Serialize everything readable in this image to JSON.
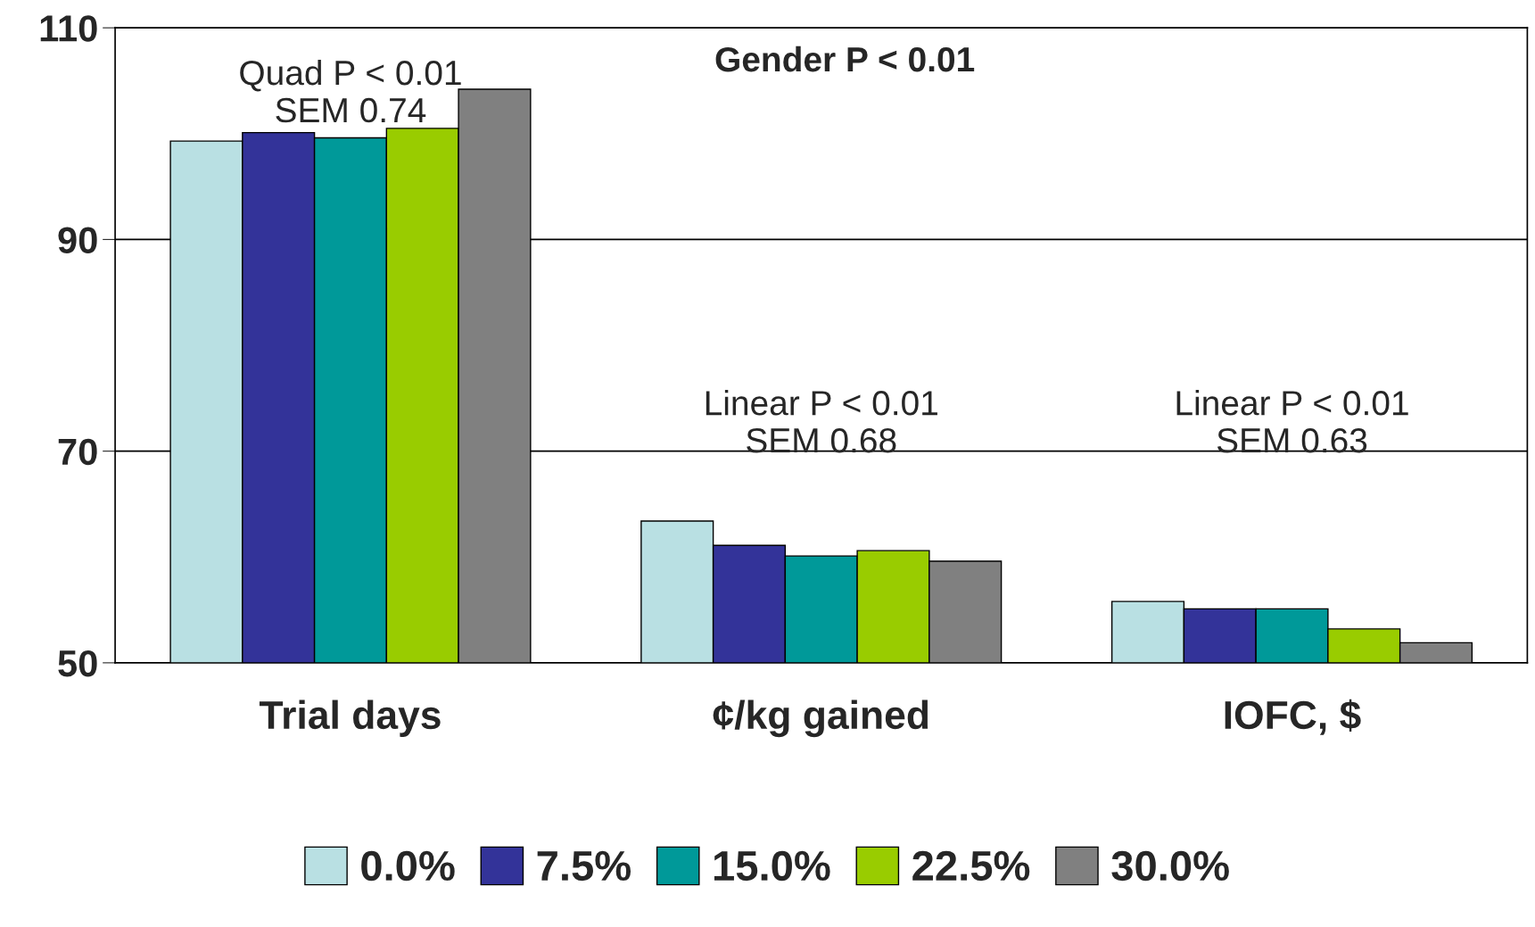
{
  "chart_data": {
    "type": "bar",
    "categories": [
      "Trial days",
      "¢/kg gained",
      "IOFC, $"
    ],
    "series": [
      {
        "name": "0.0%",
        "color": "#b9e0e3",
        "values": [
          99.3,
          63.4,
          55.8
        ]
      },
      {
        "name": "7.5%",
        "color": "#333399",
        "values": [
          100.1,
          61.1,
          55.1
        ]
      },
      {
        "name": "15.0%",
        "color": "#009999",
        "values": [
          99.6,
          60.1,
          55.1
        ]
      },
      {
        "name": "22.5%",
        "color": "#99cc00",
        "values": [
          100.5,
          60.6,
          53.2
        ]
      },
      {
        "name": "30.0%",
        "color": "#808080",
        "values": [
          104.2,
          59.6,
          51.9
        ]
      }
    ],
    "ylim": [
      50,
      110
    ],
    "yticks": [
      50,
      70,
      90,
      110
    ],
    "grid": "y",
    "legend": "bottom",
    "annotations": [
      "Quad P < 0.01\nSEM 0.74",
      "Linear P < 0.01\nSEM 0.68",
      "Linear P < 0.01\nSEM 0.63",
      "Gender P < 0.01"
    ]
  }
}
